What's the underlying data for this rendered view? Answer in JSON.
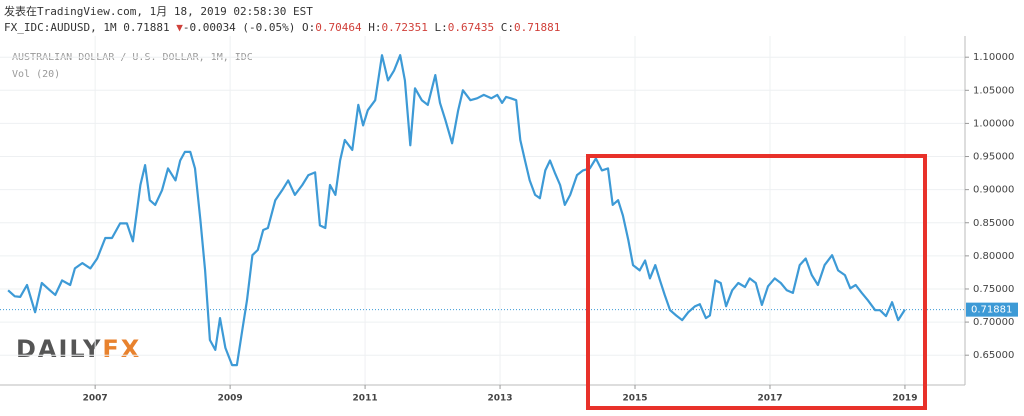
{
  "header": {
    "published": "发表在TradingView.com, 1月 18, 2019 02:58:30 EST",
    "symbol": "FX_IDC:AUDUSD, 1M",
    "last": "0.71881",
    "arrow": "▼",
    "change": "-0.00034 (-0.05%)",
    "ohlc": [
      {
        "label": "O:",
        "value": "0.70464"
      },
      {
        "label": "H:",
        "value": "0.72351"
      },
      {
        "label": "L:",
        "value": "0.67435"
      },
      {
        "label": "C:",
        "value": "0.71881"
      }
    ]
  },
  "chart_data": {
    "type": "line",
    "title": "AUSTRALIAN DOLLAR / U.S. DOLLAR, 1M, IDC",
    "subtitle": "Vol (20)",
    "watermark": [
      "DAILY",
      "FX"
    ],
    "color": "#3d9ad6",
    "x": [
      2005.71,
      2005.81,
      2005.89,
      2005.99,
      2006.11,
      2006.21,
      2006.33,
      2006.41,
      2006.51,
      2006.63,
      2006.7,
      2006.81,
      2006.93,
      2007.03,
      2007.15,
      2007.25,
      2007.37,
      2007.47,
      2007.56,
      2007.67,
      2007.74,
      2007.81,
      2007.89,
      2007.99,
      2008.08,
      2008.19,
      2008.26,
      2008.33,
      2008.41,
      2008.48,
      2008.56,
      2008.63,
      2008.7,
      2008.78,
      2008.85,
      2008.93,
      2009.03,
      2009.1,
      2009.18,
      2009.25,
      2009.33,
      2009.41,
      2009.49,
      2009.56,
      2009.67,
      2009.77,
      2009.86,
      2009.96,
      2010.07,
      2010.16,
      2010.26,
      2010.33,
      2010.41,
      2010.48,
      2010.56,
      2010.63,
      2010.7,
      2010.81,
      2010.9,
      2010.97,
      2011.04,
      2011.15,
      2011.25,
      2011.34,
      2011.43,
      2011.52,
      2011.59,
      2011.67,
      2011.74,
      2011.84,
      2011.93,
      2012.04,
      2012.11,
      2012.19,
      2012.29,
      2012.38,
      2012.45,
      2012.56,
      2012.66,
      2012.76,
      2012.87,
      2012.96,
      2013.03,
      2013.09,
      2013.16,
      2013.24,
      2013.3,
      2013.37,
      2013.44,
      2013.52,
      2013.59,
      2013.67,
      2013.74,
      2013.81,
      2013.89,
      2013.96,
      2014.04,
      2014.14,
      2014.23,
      2014.33,
      2014.42,
      2014.51,
      2014.6,
      2014.67,
      2014.75,
      2014.82,
      2014.9,
      2014.97,
      2015.07,
      2015.15,
      2015.22,
      2015.3,
      2015.37,
      2015.44,
      2015.52,
      2015.61,
      2015.7,
      2015.79,
      2015.89,
      2015.96,
      2016.05,
      2016.11,
      2016.19,
      2016.27,
      2016.35,
      2016.44,
      2016.53,
      2016.63,
      2016.7,
      2016.79,
      2016.88,
      2016.97,
      2017.07,
      2017.16,
      2017.25,
      2017.34,
      2017.44,
      2017.53,
      2017.62,
      2017.71,
      2017.81,
      2017.92,
      2018.01,
      2018.11,
      2018.19,
      2018.27,
      2018.36,
      2018.45,
      2018.56,
      2018.63,
      2018.72,
      2018.81,
      2018.9,
      2019.0
    ],
    "values": [
      0.748,
      0.739,
      0.738,
      0.756,
      0.715,
      0.759,
      0.748,
      0.741,
      0.763,
      0.756,
      0.781,
      0.789,
      0.781,
      0.796,
      0.827,
      0.827,
      0.849,
      0.849,
      0.822,
      0.907,
      0.937,
      0.884,
      0.877,
      0.899,
      0.932,
      0.914,
      0.944,
      0.957,
      0.957,
      0.932,
      0.854,
      0.778,
      0.673,
      0.658,
      0.706,
      0.661,
      0.635,
      0.635,
      0.688,
      0.733,
      0.801,
      0.809,
      0.839,
      0.842,
      0.884,
      0.899,
      0.914,
      0.892,
      0.907,
      0.922,
      0.926,
      0.846,
      0.842,
      0.907,
      0.892,
      0.944,
      0.975,
      0.96,
      1.028,
      0.997,
      1.02,
      1.035,
      1.103,
      1.065,
      1.08,
      1.103,
      1.065,
      0.967,
      1.053,
      1.035,
      1.028,
      1.073,
      1.031,
      1.005,
      0.97,
      1.02,
      1.05,
      1.035,
      1.038,
      1.043,
      1.038,
      1.043,
      1.031,
      1.04,
      1.038,
      1.035,
      0.975,
      0.944,
      0.914,
      0.892,
      0.887,
      0.929,
      0.944,
      0.926,
      0.907,
      0.877,
      0.892,
      0.922,
      0.929,
      0.932,
      0.947,
      0.929,
      0.932,
      0.877,
      0.884,
      0.861,
      0.824,
      0.786,
      0.778,
      0.793,
      0.766,
      0.786,
      0.763,
      0.741,
      0.718,
      0.71,
      0.703,
      0.715,
      0.724,
      0.727,
      0.706,
      0.71,
      0.763,
      0.759,
      0.724,
      0.748,
      0.759,
      0.753,
      0.766,
      0.759,
      0.726,
      0.754,
      0.766,
      0.759,
      0.748,
      0.744,
      0.786,
      0.796,
      0.771,
      0.756,
      0.786,
      0.801,
      0.778,
      0.771,
      0.751,
      0.756,
      0.744,
      0.733,
      0.718,
      0.718,
      0.709,
      0.73,
      0.703,
      0.71881
    ],
    "last_price": 0.71881,
    "xlim": [
      2005.59,
      2019.89
    ],
    "xticks": [
      2007,
      2009,
      2011,
      2013,
      2015,
      2017,
      2019
    ],
    "ylim": [
      0.605,
      1.132
    ],
    "yticks": [
      {
        "value": 0.65,
        "label": "0.65000"
      },
      {
        "value": 0.7,
        "label": "0.70000"
      },
      {
        "value": 0.75,
        "label": "0.75000"
      },
      {
        "value": 0.8,
        "label": "0.80000"
      },
      {
        "value": 0.85,
        "label": "0.85000"
      },
      {
        "value": 0.9,
        "label": "0.90000"
      },
      {
        "value": 0.95,
        "label": "0.95000"
      },
      {
        "value": 1.0,
        "label": "1.00000"
      },
      {
        "value": 1.05,
        "label": "1.05000"
      },
      {
        "value": 1.1,
        "label": "1.10000"
      }
    ],
    "grid": true
  }
}
